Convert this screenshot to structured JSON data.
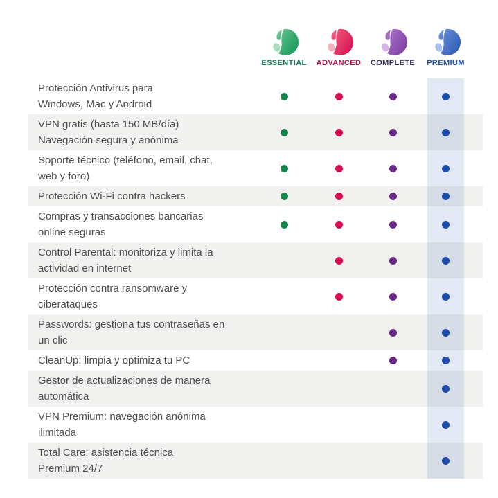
{
  "colors": {
    "page_background": "#ffffff",
    "striped_row_background": "#f1f1ef",
    "feature_text": "#4d4d4d",
    "premium_band_overlay": "rgba(45,92,176,0.13)"
  },
  "plans": [
    {
      "id": "essential",
      "label": "ESSENTIAL",
      "label_color": "#0c7a4b",
      "dot_color": "#15844a",
      "logo_light": "#7ecfa4",
      "logo_dark": "#179a58",
      "logo_soft": "#a9e0c4"
    },
    {
      "id": "advanced",
      "label": "ADVANCED",
      "label_color": "#b0114d",
      "dot_color": "#d60b50",
      "logo_light": "#f4758f",
      "logo_dark": "#d8104f",
      "logo_soft": "#f6afc1"
    },
    {
      "id": "complete",
      "label": "COMPLETE",
      "label_color": "#303056",
      "dot_color": "#6a2b89",
      "logo_light": "#b684cf",
      "logo_dark": "#7d3fa5",
      "logo_soft": "#d5b5e6"
    },
    {
      "id": "premium",
      "label": "PREMIUM",
      "label_color": "#1d4fad",
      "dot_color": "#1d4ba9",
      "logo_light": "#7e9fdd",
      "logo_dark": "#2f5cb7",
      "logo_soft": "#a7c0e9"
    }
  ],
  "features": [
    {
      "text": "Protección Antivirus para\nWindows, Mac y Android",
      "included": [
        "essential",
        "advanced",
        "complete",
        "premium"
      ]
    },
    {
      "text": "VPN gratis (hasta 150 MB/día)\nNavegación segura y anónima",
      "included": [
        "essential",
        "advanced",
        "complete",
        "premium"
      ]
    },
    {
      "text": "Soporte técnico (teléfono, email, chat,\nweb y foro)",
      "included": [
        "essential",
        "advanced",
        "complete",
        "premium"
      ]
    },
    {
      "text": "Protección Wi-Fi contra hackers",
      "included": [
        "essential",
        "advanced",
        "complete",
        "premium"
      ]
    },
    {
      "text": "Compras y transacciones bancarias\nonline seguras",
      "included": [
        "essential",
        "advanced",
        "complete",
        "premium"
      ]
    },
    {
      "text": "Control Parental: monitoriza y limita la\nactividad en internet",
      "included": [
        "advanced",
        "complete",
        "premium"
      ]
    },
    {
      "text": "Protección contra ransomware y\nciberataques",
      "included": [
        "advanced",
        "complete",
        "premium"
      ]
    },
    {
      "text": "Passwords: gestiona tus contraseñas en\nun clic",
      "included": [
        "complete",
        "premium"
      ]
    },
    {
      "text": "CleanUp: limpia y optimiza tu PC",
      "included": [
        "complete",
        "premium"
      ]
    },
    {
      "text": "Gestor de actualizaciones de manera\nautomática",
      "included": [
        "premium"
      ]
    },
    {
      "text": "VPN Premium: navegación anónima\nilimitada",
      "included": [
        "premium"
      ]
    },
    {
      "text": "Total Care: asistencia técnica\nPremium 24/7",
      "included": [
        "premium"
      ]
    }
  ]
}
